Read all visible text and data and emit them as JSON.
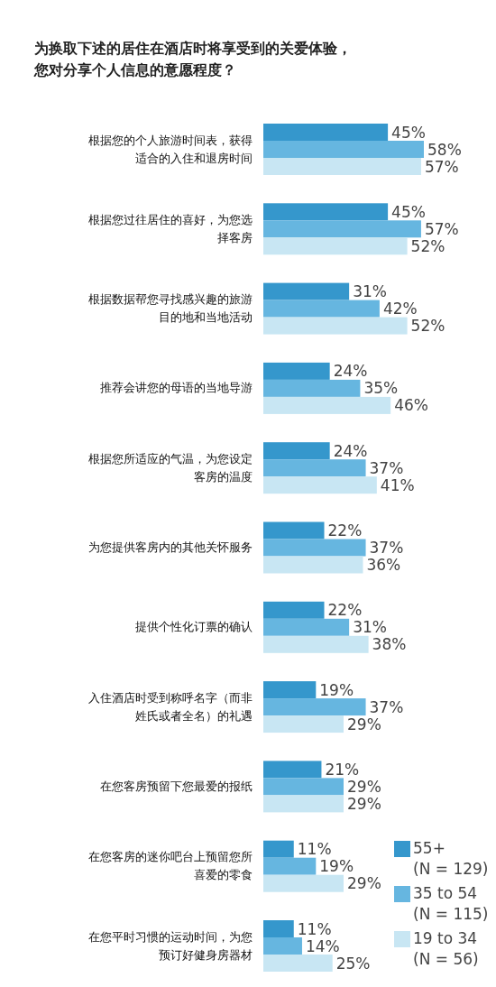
{
  "chart_data": {
    "type": "bar",
    "orientation": "horizontal",
    "title": "为换取下述的居住在酒店时将享受到的关爱体验，您对分享个人信息的意愿程度？",
    "categories": [
      "根据您的个人旅游时间表，获得适合的入住和退房时间",
      "根据您过往居住的喜好，为您选择客房",
      "根据数据帮您寻找感兴趣的旅游目的地和当地活动",
      "推荐会讲您的母语的当地导游",
      "根据您所适应的气温，为您设定客房的温度",
      "为您提供客房内的其他关怀服务",
      "提供个性化订票的确认",
      "入住酒店时受到称呼名字（而非姓氏或者全名）的礼遇",
      "在您客房预留下您最爱的报纸",
      "在您客房的迷你吧台上预留您所喜爱的零食",
      "在您平时习惯的运动时间，为您预订好健身房器材"
    ],
    "series": [
      {
        "name": "55+ (N = 129)",
        "color": "#3597cc",
        "values": [
          45,
          45,
          31,
          24,
          24,
          22,
          22,
          19,
          21,
          11,
          11
        ],
        "value_labels": [
          "45%",
          "45%",
          "31%",
          "24%",
          "24%",
          "22%",
          "22%",
          "19%",
          "21%",
          "11%",
          "11%"
        ]
      },
      {
        "name": "35 to 54 (N = 115)",
        "color": "#66b6e0",
        "values": [
          58,
          57,
          42,
          35,
          37,
          37,
          31,
          37,
          29,
          19,
          14
        ],
        "value_labels": [
          "58%",
          "57%",
          "42%",
          "35%",
          "37%",
          "37%",
          "31%",
          "37%",
          "29%",
          "19%",
          "14%"
        ]
      },
      {
        "name": "19 to 34 (N = 56)",
        "color": "#c8e6f3",
        "values": [
          57,
          52,
          52,
          46,
          41,
          36,
          38,
          29,
          29,
          29,
          25
        ],
        "value_labels": [
          "57%",
          "52%",
          "52%",
          "46%",
          "41%",
          "36%",
          "38%",
          "29%",
          "29%",
          "29%",
          "25%"
        ]
      }
    ],
    "legend": "bottom right"
  }
}
